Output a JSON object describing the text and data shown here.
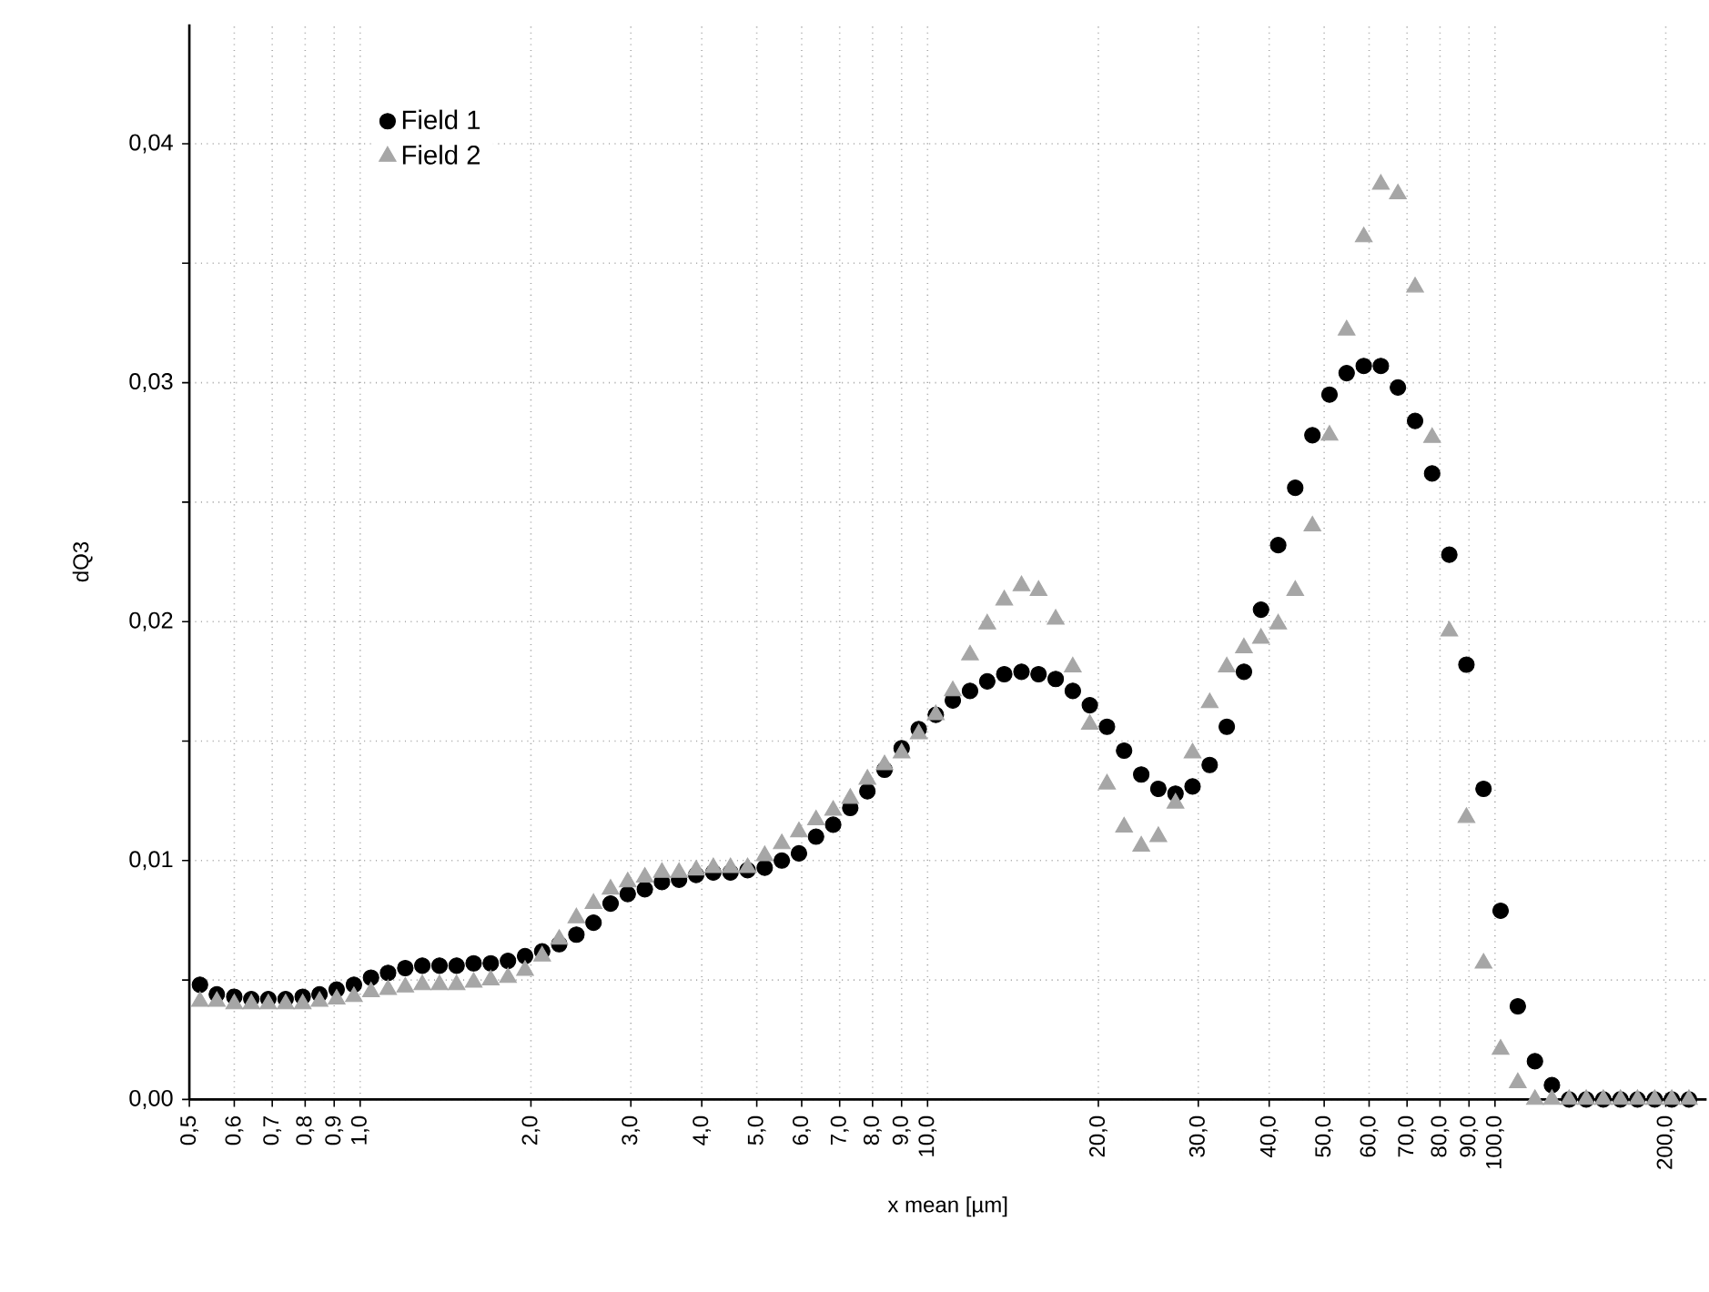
{
  "chart_data": {
    "type": "scatter",
    "xlabel": "x mean [µm]",
    "ylabel": "dQ3",
    "log": "x",
    "grid": true,
    "legend": "top left",
    "xlim": [
      0.5,
      236
    ],
    "ylim": [
      0,
      0.045
    ],
    "xticks": [
      {
        "value": 0.5,
        "label": "0,5"
      },
      {
        "value": 0.6,
        "label": "0,6"
      },
      {
        "value": 0.7,
        "label": "0,7"
      },
      {
        "value": 0.8,
        "label": "0,8"
      },
      {
        "value": 0.9,
        "label": "0,9"
      },
      {
        "value": 1,
        "label": "1,0"
      },
      {
        "value": 2,
        "label": "2,0"
      },
      {
        "value": 3,
        "label": "3,0"
      },
      {
        "value": 4,
        "label": "4,0"
      },
      {
        "value": 5,
        "label": "5,0"
      },
      {
        "value": 6,
        "label": "6,0"
      },
      {
        "value": 7,
        "label": "7,0"
      },
      {
        "value": 8,
        "label": "8,0"
      },
      {
        "value": 9,
        "label": "9,0"
      },
      {
        "value": 10,
        "label": "10,0"
      },
      {
        "value": 20,
        "label": "20,0"
      },
      {
        "value": 30,
        "label": "30,0"
      },
      {
        "value": 40,
        "label": "40,0"
      },
      {
        "value": 50,
        "label": "50,0"
      },
      {
        "value": 60,
        "label": "60,0"
      },
      {
        "value": 70,
        "label": "70,0"
      },
      {
        "value": 80,
        "label": "80,0"
      },
      {
        "value": 90,
        "label": "90,0"
      },
      {
        "value": 100,
        "label": "100,0"
      },
      {
        "value": 200,
        "label": "200,0"
      }
    ],
    "yticks": [
      {
        "value": 0,
        "label": "0,00"
      },
      {
        "value": 0.005,
        "label": null
      },
      {
        "value": 0.01,
        "label": "0,01"
      },
      {
        "value": 0.015,
        "label": null
      },
      {
        "value": 0.02,
        "label": "0,02"
      },
      {
        "value": 0.025,
        "label": null
      },
      {
        "value": 0.03,
        "label": "0,03"
      },
      {
        "value": 0.035,
        "label": null
      },
      {
        "value": 0.04,
        "label": "0,04"
      }
    ],
    "x": [
      0.522,
      0.559,
      0.6,
      0.643,
      0.689,
      0.739,
      0.792,
      0.848,
      0.909,
      0.975,
      1.045,
      1.12,
      1.201,
      1.287,
      1.38,
      1.479,
      1.585,
      1.699,
      1.822,
      1.953,
      2.093,
      2.243,
      2.405,
      2.578,
      2.763,
      2.962,
      3.175,
      3.403,
      3.648,
      3.911,
      4.192,
      4.494,
      4.817,
      5.164,
      5.535,
      5.934,
      6.36,
      6.818,
      7.308,
      7.834,
      8.398,
      9.001,
      9.647,
      10.34,
      11.08,
      11.88,
      12.74,
      13.65,
      14.64,
      15.69,
      16.82,
      18.03,
      19.32,
      20.71,
      22.2,
      23.8,
      25.51,
      27.35,
      29.31,
      31.42,
      33.68,
      36.11,
      38.7,
      41.49,
      44.46,
      47.67,
      51.09,
      54.77,
      58.71,
      62.93,
      67.45,
      72.31,
      77.5,
      83.08,
      89.06,
      95.46,
      102.3,
      109.7,
      117.6,
      126.0,
      135.1,
      144.8,
      155.2,
      166.4,
      178.3,
      191.2,
      204.9,
      219.7
    ],
    "series": [
      {
        "name": "Field 1",
        "color": "#000000",
        "marker": "circle",
        "values": [
          0.0048,
          0.0044,
          0.0043,
          0.0042,
          0.0042,
          0.0042,
          0.0043,
          0.0044,
          0.0046,
          0.0048,
          0.0051,
          0.0053,
          0.0055,
          0.0056,
          0.0056,
          0.0056,
          0.0057,
          0.0057,
          0.0058,
          0.006,
          0.0062,
          0.0065,
          0.0069,
          0.0074,
          0.0082,
          0.0086,
          0.0088,
          0.0091,
          0.0092,
          0.0094,
          0.0095,
          0.0095,
          0.0096,
          0.0097,
          0.01,
          0.0103,
          0.011,
          0.0115,
          0.0122,
          0.0129,
          0.0138,
          0.0147,
          0.0155,
          0.0161,
          0.0167,
          0.0171,
          0.0175,
          0.0178,
          0.0179,
          0.0178,
          0.0176,
          0.0171,
          0.0165,
          0.0156,
          0.0146,
          0.0136,
          0.013,
          0.0128,
          0.0131,
          0.014,
          0.0156,
          0.0179,
          0.0205,
          0.0232,
          0.0256,
          0.0278,
          0.0295,
          0.0304,
          0.0307,
          0.0307,
          0.0298,
          0.0284,
          0.0262,
          0.0228,
          0.0182,
          0.013,
          0.0079,
          0.0039,
          0.0016,
          0.0006,
          0,
          0,
          0,
          0,
          0,
          0,
          0,
          0
        ]
      },
      {
        "name": "Field 2",
        "color": "#a6a6a6",
        "marker": "triangle",
        "values": [
          0.0041,
          0.0041,
          0.004,
          0.004,
          0.004,
          0.004,
          0.004,
          0.0041,
          0.0042,
          0.0043,
          0.0045,
          0.0046,
          0.0047,
          0.0048,
          0.0048,
          0.0048,
          0.0049,
          0.005,
          0.0051,
          0.0054,
          0.006,
          0.0067,
          0.0076,
          0.0082,
          0.0088,
          0.0091,
          0.0093,
          0.0095,
          0.0095,
          0.0096,
          0.0097,
          0.0097,
          0.0097,
          0.0102,
          0.0107,
          0.0112,
          0.0117,
          0.0121,
          0.0126,
          0.0134,
          0.014,
          0.0145,
          0.0153,
          0.0161,
          0.0171,
          0.0186,
          0.0199,
          0.0209,
          0.0215,
          0.0213,
          0.0201,
          0.0181,
          0.0157,
          0.0132,
          0.0114,
          0.0106,
          0.011,
          0.0124,
          0.0145,
          0.0166,
          0.0181,
          0.0189,
          0.0193,
          0.0199,
          0.0213,
          0.024,
          0.0278,
          0.0322,
          0.0361,
          0.0383,
          0.0379,
          0.034,
          0.0277,
          0.0196,
          0.0118,
          0.0057,
          0.0021,
          0.0007,
          0,
          0,
          0,
          0,
          0,
          0,
          0,
          0,
          0,
          0
        ]
      }
    ]
  }
}
